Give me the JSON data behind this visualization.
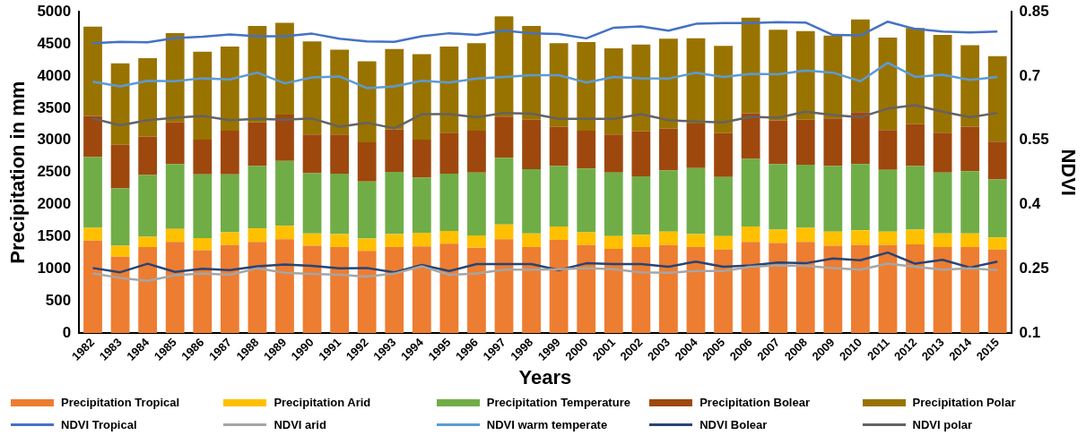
{
  "chart_data": {
    "type": "bar",
    "stacked": true,
    "xlabel": "Years",
    "ylabel": "Precipitation in mm",
    "y2label": "NDVI",
    "legend": "bottom",
    "marker": "none",
    "categories": [
      "1982",
      "1983",
      "1984",
      "1985",
      "1986",
      "1987",
      "1988",
      "1989",
      "1990",
      "1991",
      "1992",
      "1993",
      "1994",
      "1995",
      "1996",
      "1997",
      "1998",
      "1999",
      "2000",
      "2001",
      "2002",
      "2003",
      "2004",
      "2005",
      "2006",
      "2007",
      "2008",
      "2009",
      "2010",
      "2011",
      "2012",
      "2013",
      "2014",
      "2015"
    ],
    "ylim": [
      0,
      5000
    ],
    "yticks": [
      0,
      500,
      1000,
      1500,
      2000,
      2500,
      3000,
      3500,
      4000,
      4500,
      5000
    ],
    "y2lim": [
      0.1,
      0.85
    ],
    "y2ticks": [
      0.1,
      0.25,
      0.4,
      0.55,
      0.7,
      0.85
    ],
    "series": [
      {
        "name": "Precipitation Tropical",
        "color": "#ed7d31",
        "values": [
          1440,
          1190,
          1340,
          1420,
          1290,
          1370,
          1420,
          1460,
          1360,
          1340,
          1280,
          1340,
          1350,
          1390,
          1330,
          1460,
          1340,
          1450,
          1370,
          1310,
          1340,
          1370,
          1340,
          1300,
          1420,
          1400,
          1420,
          1360,
          1370,
          1370,
          1380,
          1340,
          1340,
          1300
        ]
      },
      {
        "name": "Precipitation Arid",
        "color": "#ffc000",
        "values": [
          200,
          170,
          160,
          200,
          190,
          200,
          210,
          210,
          190,
          200,
          190,
          200,
          210,
          200,
          190,
          230,
          210,
          210,
          200,
          200,
          190,
          210,
          200,
          210,
          240,
          210,
          220,
          220,
          230,
          210,
          230,
          210,
          210,
          190
        ]
      },
      {
        "name": "Precipitation Temperature",
        "color": "#70ad47",
        "values": [
          1100,
          890,
          960,
          1010,
          990,
          900,
          970,
          1010,
          940,
          940,
          890,
          970,
          860,
          890,
          980,
          1040,
          1000,
          940,
          990,
          990,
          910,
          950,
          1030,
          920,
          1050,
          1020,
          980,
          1020,
          1030,
          960,
          990,
          950,
          970,
          900
        ]
      },
      {
        "name": "Precipitation Bolear",
        "color": "#9e480e",
        "values": [
          640,
          680,
          600,
          650,
          540,
          680,
          680,
          720,
          600,
          610,
          610,
          660,
          590,
          640,
          650,
          640,
          770,
          610,
          590,
          590,
          700,
          650,
          690,
          680,
          710,
          680,
          700,
          740,
          810,
          620,
          650,
          620,
          690,
          590
        ]
      },
      {
        "name": "Precipitation Polar",
        "color": "#997300",
        "values": [
          1390,
          1270,
          1220,
          1390,
          1370,
          1310,
          1500,
          1430,
          1450,
          1320,
          1260,
          1250,
          1330,
          1340,
          1360,
          1560,
          1460,
          1300,
          1380,
          1340,
          1350,
          1400,
          1330,
          1360,
          1490,
          1410,
          1380,
          1290,
          1440,
          1440,
          1500,
          1520,
          1270,
          1330
        ]
      },
      {
        "name": "NDVI Tropical",
        "type": "line",
        "axis": "y2",
        "color": "#4472c4",
        "values": [
          0.777,
          0.78,
          0.779,
          0.789,
          0.792,
          0.797,
          0.793,
          0.793,
          0.799,
          0.787,
          0.781,
          0.78,
          0.793,
          0.8,
          0.796,
          0.806,
          0.8,
          0.798,
          0.788,
          0.813,
          0.816,
          0.806,
          0.822,
          0.824,
          0.824,
          0.826,
          0.825,
          0.796,
          0.795,
          0.827,
          0.81,
          0.804,
          0.802,
          0.804
        ]
      },
      {
        "name": "NDVI arid",
        "type": "line",
        "axis": "y2",
        "color": "#a5a5a5",
        "values": [
          0.239,
          0.229,
          0.222,
          0.235,
          0.239,
          0.236,
          0.251,
          0.241,
          0.238,
          0.236,
          0.232,
          0.239,
          0.256,
          0.236,
          0.239,
          0.248,
          0.248,
          0.249,
          0.252,
          0.249,
          0.242,
          0.241,
          0.245,
          0.245,
          0.255,
          0.258,
          0.257,
          0.252,
          0.248,
          0.262,
          0.255,
          0.248,
          0.251,
          0.247
        ]
      },
      {
        "name": "NDVI warm temperate",
        "type": "line",
        "axis": "y2",
        "color": "#5b9bd5",
        "values": [
          0.687,
          0.676,
          0.689,
          0.688,
          0.695,
          0.692,
          0.708,
          0.683,
          0.697,
          0.699,
          0.672,
          0.676,
          0.689,
          0.685,
          0.694,
          0.698,
          0.702,
          0.702,
          0.685,
          0.698,
          0.695,
          0.694,
          0.708,
          0.698,
          0.705,
          0.704,
          0.713,
          0.708,
          0.688,
          0.731,
          0.698,
          0.703,
          0.691,
          0.698
        ]
      },
      {
        "name": "NDVI Bolear",
        "type": "line",
        "axis": "y2",
        "color": "#264478",
        "values": [
          0.252,
          0.242,
          0.262,
          0.243,
          0.25,
          0.247,
          0.256,
          0.26,
          0.257,
          0.251,
          0.252,
          0.242,
          0.259,
          0.245,
          0.261,
          0.261,
          0.261,
          0.247,
          0.263,
          0.261,
          0.261,
          0.255,
          0.267,
          0.255,
          0.258,
          0.265,
          0.263,
          0.274,
          0.27,
          0.288,
          0.262,
          0.271,
          0.253,
          0.267
        ]
      },
      {
        "name": "NDVI polar",
        "type": "line",
        "axis": "y2",
        "color": "#636363",
        "values": [
          0.601,
          0.585,
          0.597,
          0.603,
          0.607,
          0.597,
          0.6,
          0.598,
          0.601,
          0.582,
          0.591,
          0.578,
          0.611,
          0.611,
          0.604,
          0.614,
          0.612,
          0.6,
          0.6,
          0.6,
          0.611,
          0.597,
          0.594,
          0.592,
          0.605,
          0.603,
          0.617,
          0.609,
          0.604,
          0.624,
          0.632,
          0.617,
          0.604,
          0.614
        ]
      }
    ]
  }
}
